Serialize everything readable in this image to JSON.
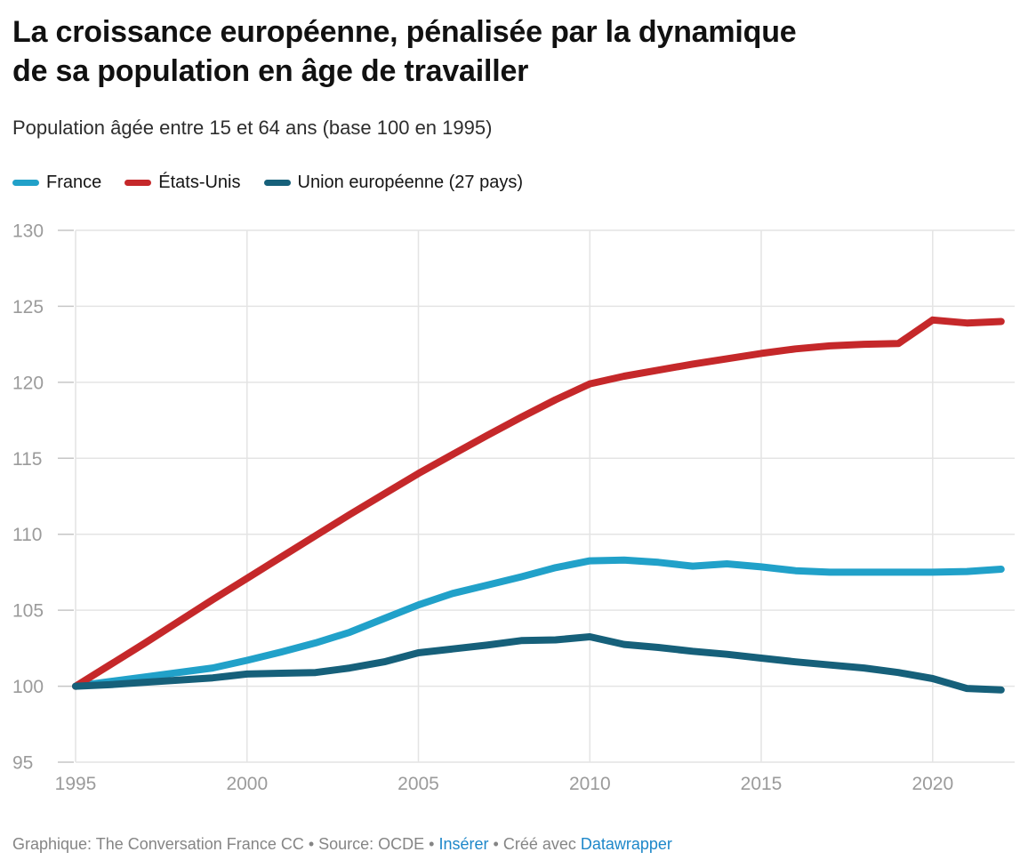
{
  "header": {
    "title_lines": [
      "La croissance européenne, pénalisée par la dynamique",
      "de sa population en âge de travailler"
    ],
    "subtitle": "Population âgée entre 15 et 64 ans (base 100 en 1995)"
  },
  "footer": {
    "parts": [
      "Graphique: The Conversation France CC • Source: OCDE • ",
      "Insérer",
      " • Créé avec ",
      "Datawrapper"
    ],
    "link_color": "#1d87c9",
    "text_color": "#858585"
  },
  "chart_data": {
    "type": "line",
    "title": "La croissance européenne, pénalisée par la dynamique de sa population en âge de travailler",
    "subtitle": "Population âgée entre 15 et 64 ans (base 100 en 1995)",
    "x": [
      1995,
      1996,
      1997,
      1998,
      1999,
      2000,
      2001,
      2002,
      2003,
      2004,
      2005,
      2006,
      2007,
      2008,
      2009,
      2010,
      2011,
      2012,
      2013,
      2014,
      2015,
      2016,
      2017,
      2018,
      2019,
      2020,
      2021,
      2022
    ],
    "series": [
      {
        "name": "France",
        "color": "#21a1c9",
        "values": [
          100,
          100.3,
          100.6,
          100.9,
          101.2,
          101.7,
          102.25,
          102.85,
          103.55,
          104.45,
          105.35,
          106.1,
          106.65,
          107.2,
          107.8,
          108.25,
          108.3,
          108.15,
          107.9,
          108.05,
          107.85,
          107.6,
          107.5,
          107.5,
          107.5,
          107.5,
          107.55,
          107.7
        ]
      },
      {
        "name": "États-Unis",
        "color": "#c5282a",
        "values": [
          100,
          101.4,
          102.8,
          104.25,
          105.7,
          107.1,
          108.5,
          109.9,
          111.3,
          112.65,
          114,
          115.25,
          116.5,
          117.7,
          118.85,
          119.9,
          120.4,
          120.8,
          121.2,
          121.55,
          121.9,
          122.2,
          122.4,
          122.5,
          122.55,
          124.1,
          123.9,
          124
        ]
      },
      {
        "name": "Union européenne (27 pays)",
        "color": "#16607a",
        "values": [
          100,
          100.1,
          100.25,
          100.4,
          100.55,
          100.8,
          100.85,
          100.9,
          101.2,
          101.6,
          102.2,
          102.45,
          102.7,
          103,
          103.05,
          103.25,
          102.75,
          102.55,
          102.3,
          102.1,
          101.85,
          101.6,
          101.4,
          101.2,
          100.9,
          100.5,
          99.85,
          99.75
        ]
      }
    ],
    "yticks": [
      95,
      100,
      105,
      110,
      115,
      120,
      125,
      130
    ],
    "xticks": [
      1995,
      2000,
      2005,
      2010,
      2015,
      2020
    ],
    "ylim": [
      95,
      130
    ],
    "xlim": [
      1995,
      2022.4
    ],
    "grid": true,
    "legend_position": "top-left",
    "grid_color": "#e4e4e4",
    "tick_color": "#c6c6c6",
    "axis_label_color": "#9b9b9b"
  }
}
